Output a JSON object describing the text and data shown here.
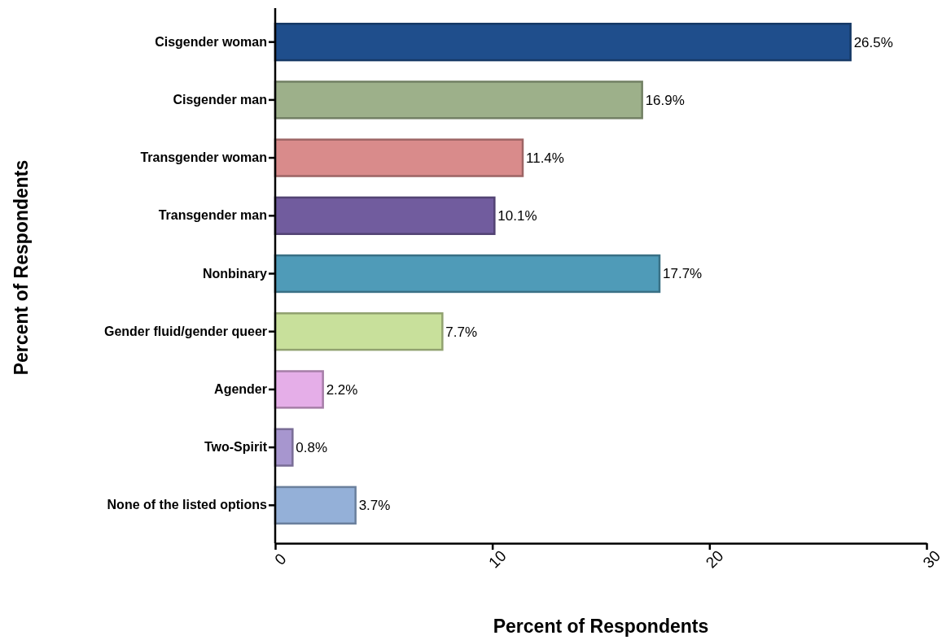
{
  "chart_data": {
    "type": "bar",
    "orientation": "horizontal",
    "xlabel": "Percent of Respondents",
    "ylabel": "Percent of Respondents",
    "categories": [
      "Cisgender woman",
      "Cisgender man",
      "Transgender woman",
      "Transgender man",
      "Nonbinary",
      "Gender fluid/gender queer",
      "Agender",
      "Two-Spirit",
      "None of the listed options"
    ],
    "values": [
      26.5,
      16.9,
      11.4,
      10.1,
      17.7,
      7.7,
      2.2,
      0.8,
      3.7
    ],
    "value_labels": [
      "26.5%",
      "16.9%",
      "11.4%",
      "10.1%",
      "17.7%",
      "7.7%",
      "2.2%",
      "0.8%",
      "3.7%"
    ],
    "colors": [
      "#1f4e8c",
      "#9db08a",
      "#d98b8b",
      "#715c9e",
      "#4f9bb8",
      "#c8e09b",
      "#e5aee8",
      "#a796cf",
      "#94b0d8"
    ],
    "xlim": [
      0,
      30
    ],
    "xticks": [
      0,
      10,
      20,
      30
    ],
    "grid": false
  }
}
